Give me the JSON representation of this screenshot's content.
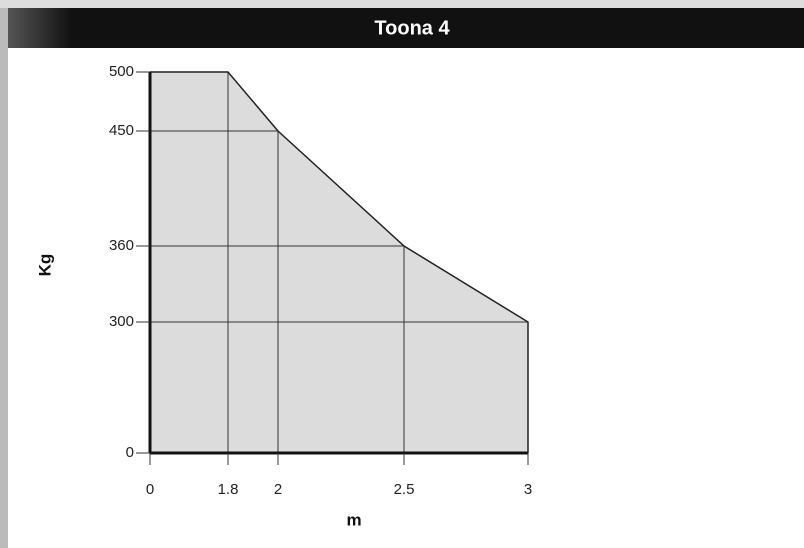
{
  "chart_data": {
    "type": "area",
    "title": "Toona 4",
    "x_label": "m",
    "y_label": "Kg",
    "x": [
      0,
      1.8,
      2,
      2.5,
      3
    ],
    "values": [
      500,
      500,
      450,
      360,
      300
    ],
    "color": "#dcdcdc",
    "line_color": "#222222",
    "xlim": [
      0,
      3
    ],
    "xticks": [
      0,
      1.8,
      2,
      2.5,
      3
    ],
    "ylim": [
      0,
      500
    ],
    "yticks": [
      0,
      300,
      360,
      450,
      500
    ],
    "grid": true
  }
}
